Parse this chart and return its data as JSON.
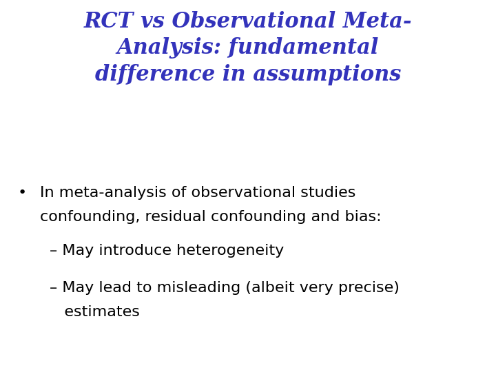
{
  "title_line1": "RCT vs Observational Meta-",
  "title_line2": "Analysis: fundamental",
  "title_line3": "difference in assumptions",
  "title_color": "#3333bb",
  "title_fontsize": 22,
  "bullet_text_line1": "In meta-analysis of observational studies",
  "bullet_text_line2": "confounding, residual confounding and bias:",
  "bullet_color": "#000000",
  "bullet_fontsize": 16,
  "sub1": "– May introduce heterogeneity",
  "sub2_line1": "– May lead to misleading (albeit very precise)",
  "sub2_line2": "   estimates",
  "sub_color": "#000000",
  "sub_fontsize": 16,
  "background_color": "#ffffff",
  "fig_width": 7.2,
  "fig_height": 5.4,
  "dpi": 100
}
